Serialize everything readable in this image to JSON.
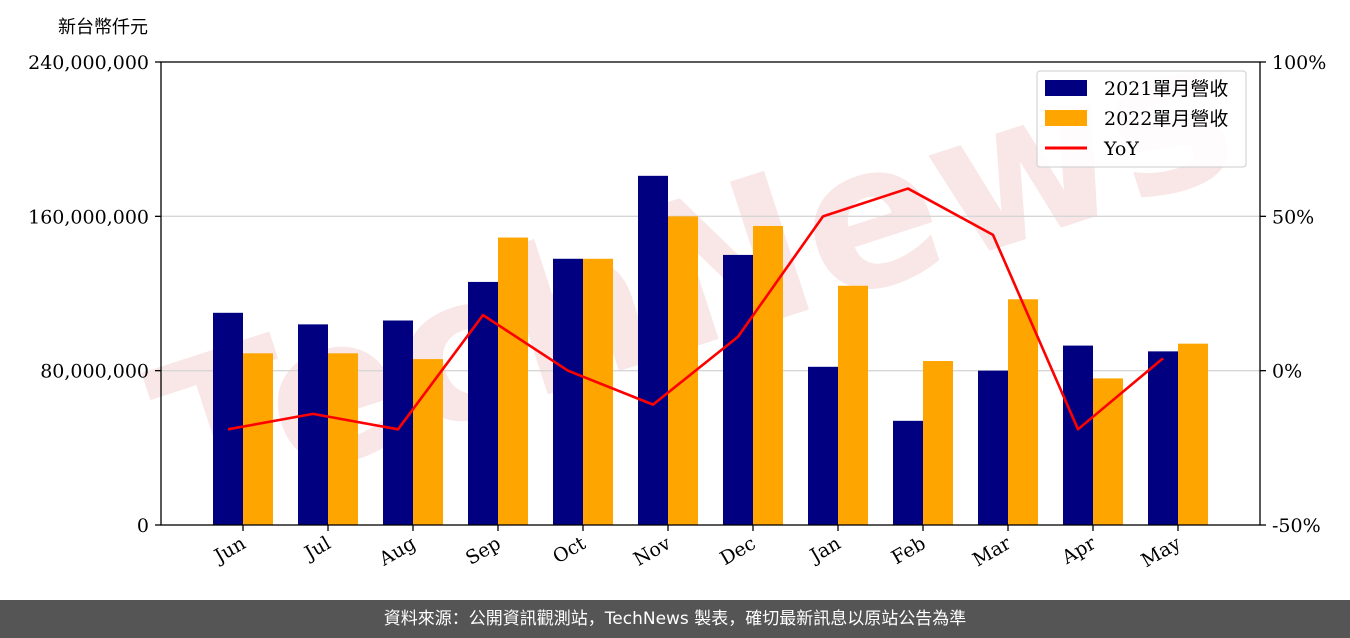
{
  "chart_data": {
    "type": "bar",
    "y_unit_label": "新台幣仟元",
    "categories": [
      "Jun",
      "Jul",
      "Aug",
      "Sep",
      "Oct",
      "Nov",
      "Dec",
      "Jan",
      "Feb",
      "Mar",
      "Apr",
      "May"
    ],
    "series": [
      {
        "name": "2021單月營收",
        "type": "bar",
        "axis": "left",
        "color": "#000080",
        "values": [
          110000000,
          104000000,
          106000000,
          126000000,
          138000000,
          181000000,
          140000000,
          82000000,
          54000000,
          80000000,
          93000000,
          90000000
        ]
      },
      {
        "name": "2022單月營收",
        "type": "bar",
        "axis": "left",
        "color": "#FFA500",
        "values": [
          89000000,
          89000000,
          86000000,
          149000000,
          138000000,
          160000000,
          155000000,
          124000000,
          85000000,
          117000000,
          76000000,
          94000000
        ]
      },
      {
        "name": "YoY",
        "type": "line",
        "axis": "right",
        "color": "#FF0000",
        "values": [
          -19,
          -14,
          -19,
          18,
          0,
          -11,
          11,
          50,
          59,
          44,
          -19,
          4
        ]
      }
    ],
    "left_axis": {
      "ylim": [
        0,
        240000000
      ],
      "ticks": [
        "0",
        "80,000,000",
        "160,000,000",
        "240,000,000"
      ],
      "tick_values": [
        0,
        80000000,
        160000000,
        240000000
      ]
    },
    "right_axis": {
      "ylim": [
        -50,
        100
      ],
      "ticks": [
        "-50%",
        "0%",
        "50%",
        "100%"
      ],
      "tick_values": [
        -50,
        0,
        50,
        100
      ]
    },
    "grid": "horizontal",
    "legend_position": "top-right",
    "watermark": "TechNews"
  },
  "footer": {
    "source_text": "資料來源：公開資訊觀測站，TechNews 製表，確切最新訊息以原站公告為準"
  }
}
